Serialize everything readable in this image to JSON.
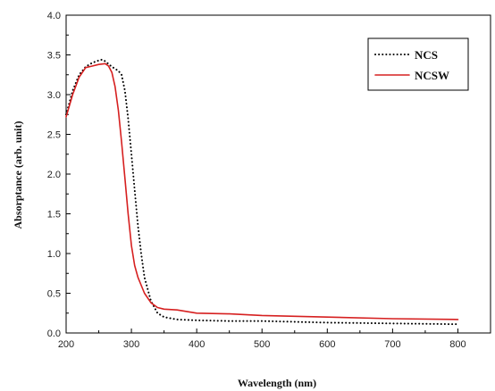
{
  "chart_data": {
    "type": "line",
    "title": "",
    "xlabel": "Wavelength (nm)",
    "ylabel": "Absorptance (arb. unit)",
    "xlim": [
      200,
      850
    ],
    "ylim": [
      0.0,
      4.0
    ],
    "xticks": [
      200,
      300,
      400,
      500,
      600,
      700,
      800
    ],
    "yticks": [
      0.0,
      0.5,
      1.0,
      1.5,
      2.0,
      2.5,
      3.0,
      3.5,
      4.0
    ],
    "grid": false,
    "legend_position": "top-right",
    "series": [
      {
        "name": "NCS",
        "color": "#000000",
        "style": "dotted",
        "x": [
          200,
          210,
          220,
          230,
          240,
          250,
          255,
          260,
          270,
          280,
          285,
          290,
          295,
          300,
          305,
          310,
          315,
          320,
          330,
          340,
          350,
          370,
          400,
          450,
          500,
          600,
          700,
          800
        ],
        "y": [
          2.75,
          3.05,
          3.25,
          3.35,
          3.4,
          3.43,
          3.44,
          3.42,
          3.35,
          3.3,
          3.25,
          3.05,
          2.7,
          2.25,
          1.8,
          1.35,
          1.0,
          0.7,
          0.4,
          0.25,
          0.2,
          0.17,
          0.16,
          0.15,
          0.15,
          0.13,
          0.12,
          0.11
        ]
      },
      {
        "name": "NCSW",
        "color": "#d62020",
        "style": "solid",
        "x": [
          200,
          210,
          220,
          230,
          240,
          250,
          260,
          265,
          270,
          275,
          280,
          285,
          290,
          295,
          300,
          305,
          310,
          320,
          330,
          340,
          350,
          370,
          400,
          450,
          500,
          600,
          700,
          800
        ],
        "y": [
          2.72,
          3.0,
          3.22,
          3.34,
          3.36,
          3.38,
          3.39,
          3.36,
          3.28,
          3.1,
          2.8,
          2.4,
          1.95,
          1.5,
          1.1,
          0.85,
          0.7,
          0.5,
          0.38,
          0.32,
          0.3,
          0.29,
          0.25,
          0.24,
          0.22,
          0.2,
          0.18,
          0.17
        ]
      }
    ]
  }
}
